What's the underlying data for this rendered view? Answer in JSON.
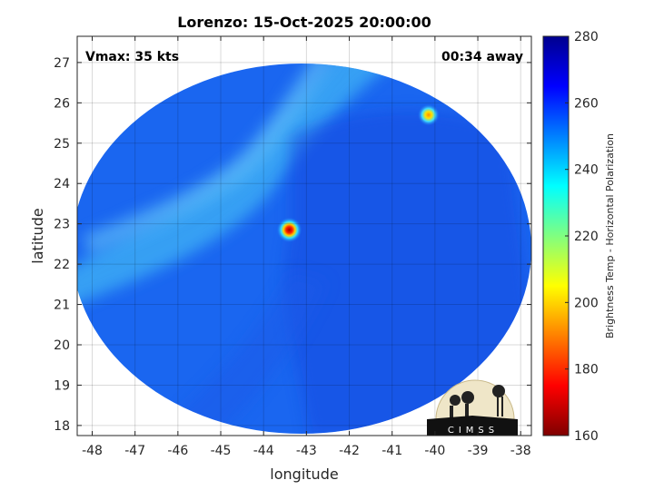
{
  "title": "Lorenzo: 15-Oct-2025 20:00:00",
  "vmax_label": "Vmax: 35 kts",
  "time_label": "00:34 away",
  "logo_text": "CIMSS",
  "map": {
    "xlabel": "longitude",
    "ylabel": "latitude",
    "x_ticks": [
      "-48",
      "-47",
      "-46",
      "-45",
      "-44",
      "-43",
      "-42",
      "-41",
      "-40",
      "-39",
      "-38"
    ],
    "y_ticks": [
      "27",
      "26",
      "25",
      "24",
      "23",
      "22",
      "21",
      "20",
      "19",
      "18"
    ],
    "xlim": [
      -48.35,
      -37.75
    ],
    "ylim": [
      17.75,
      27.65
    ],
    "grid": true,
    "disk_center": {
      "lon": -43.05,
      "lat": 22.65
    },
    "hot_spots": [
      {
        "lon": -43.4,
        "lat": 22.85,
        "temp": 175
      },
      {
        "lon": -40.15,
        "lat": 25.7,
        "temp": 205
      }
    ]
  },
  "colorbar": {
    "label": "Brightness Temp - Horizontal Polarization",
    "min": 160,
    "max": 280,
    "ticks": [
      "280",
      "260",
      "240",
      "220",
      "200",
      "180",
      "160"
    ],
    "colormap": "jet",
    "stops": [
      "#7f0000",
      "#ff0000",
      "#ff7f00",
      "#ffff00",
      "#7fff7f",
      "#00ffff",
      "#007fff",
      "#0000ff",
      "#00008f"
    ]
  },
  "colors": {
    "background_field": "#1a66f0",
    "cool_band": "#3fb3f5",
    "warm_core": "#1040d8"
  }
}
